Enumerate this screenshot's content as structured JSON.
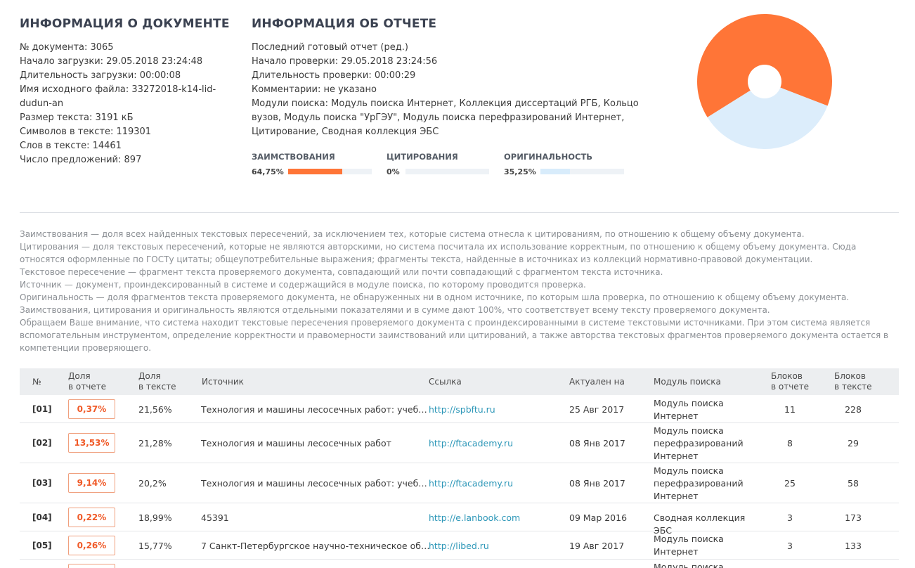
{
  "doc_info": {
    "title": "ИНФОРМАЦИЯ О ДОКУМЕНТЕ",
    "lines": [
      "№ документа: 3065",
      "Начало загрузки: 29.05.2018 23:24:48",
      "Длительность загрузки: 00:00:08",
      "Имя исходного файла: 33272018-k14-lid-",
      "dudun-an",
      "Размер текста: 3191 кБ",
      "Символов в тексте: 119301",
      "Слов в тексте: 14461",
      "Число предложений: 897"
    ]
  },
  "report_info": {
    "title": "ИНФОРМАЦИЯ ОБ ОТЧЕТЕ",
    "lines": [
      "Последний готовый отчет (ред.)",
      "Начало проверки: 29.05.2018 23:24:56",
      "Длительность проверки: 00:00:29",
      "Комментарии: не указано",
      "Модули поиска: Модуль поиска Интернет, Коллекция диссертаций РГБ, Кольцо",
      "вузов, Модуль поиска \"УрГЭУ\", Модуль поиска перефразирований Интернет,",
      "Цитирование, Сводная коллекция ЭБС"
    ]
  },
  "metrics": {
    "borrowing": {
      "label": "ЗАИМСТВОВАНИЯ",
      "value": "64,75%",
      "fraction": 0.6475,
      "color": "#ff7537"
    },
    "citation": {
      "label": "ЦИТИРОВАНИЯ",
      "value": "0%",
      "fraction": 0.0,
      "color": "#9fd45b"
    },
    "originality": {
      "label": "ОРИГИНАЛЬНОСТЬ",
      "value": "35,25%",
      "fraction": 0.3525,
      "color": "#d8ecfb"
    }
  },
  "pie_chart": {
    "slices": [
      {
        "label": "Заимствования",
        "value": 64.75,
        "color": "#ff7537"
      },
      {
        "label": "Оригинальность",
        "value": 35.25,
        "color": "#dcedfb"
      }
    ]
  },
  "legend_lines": [
    "Заимствования — доля всех найденных текстовых пересечений, за исключением тех, которые система отнесла к цитированиям, по отношению к общему объему документа.",
    "Цитирования — доля текстовых пересечений, которые не являются авторскими, но система посчитала их использование корректным, по отношению к общему объему документа. Сюда",
    "относятся оформленные по ГОСТу цитаты; общеупотребительные выражения; фрагменты текста, найденные в источниках из коллекций нормативно-правовой документации.",
    "Текстовое пересечение — фрагмент текста проверяемого документа, совпадающий или почти совпадающий с фрагментом текста источника.",
    "Источник — документ, проиндексированный в системе и содержащийся в модуле поиска, по которому проводится проверка.",
    "Оригинальность — доля фрагментов текста проверяемого документа, не обнаруженных ни в одном источнике, по которым шла проверка, по отношению к общему объему документа.",
    "Заимствования, цитирования и оригинальность являются отдельными показателями и в сумме дают 100%, что соответствует всему тексту проверяемого документа.",
    "Обращаем Ваше внимание, что система находит текстовые пересечения проверяемого документа с проиндексированными в системе текстовыми источниками. При этом система является",
    "вспомогательным инструментом, определение корректности и правомерности заимствований или цитирований, а также авторства текстовых фрагментов проверяемого документа остается в",
    "компетенции проверяющего."
  ],
  "table": {
    "headers": {
      "num": "№",
      "share_report_1": "Доля",
      "share_report_2": "в отчете",
      "share_text_1": "Доля",
      "share_text_2": "в тексте",
      "source": "Источник",
      "link": "Ссылка",
      "updated": "Актуален на",
      "module": "Модуль поиска",
      "blocks_report_1": "Блоков",
      "blocks_report_2": "в отчете",
      "blocks_text_1": "Блоков",
      "blocks_text_2": "в тексте"
    },
    "rows": [
      {
        "num": "[01]",
        "share_report": "0,37%",
        "share_text": "21,56%",
        "source": "Технология и машины лесосечных работ: учеб…",
        "link": "http://spbftu.ru",
        "updated": "25 Авг 2017",
        "module": "Модуль поиска Интернет",
        "blocks_report": "11",
        "blocks_text": "228"
      },
      {
        "num": "[02]",
        "share_report": "13,53%",
        "share_text": "21,28%",
        "source": "Технология и машины лесосечных работ",
        "link": "http://ftacademy.ru",
        "updated": "08 Янв 2017",
        "module": "Модуль поиска перефразирований Интернет",
        "blocks_report": "8",
        "blocks_text": "29"
      },
      {
        "num": "[03]",
        "share_report": "9,14%",
        "share_text": "20,2%",
        "source": "Технология и машины лесосечных работ: учеб…",
        "link": "http://ftacademy.ru",
        "updated": "08 Янв 2017",
        "module": "Модуль поиска перефразирований Интернет",
        "blocks_report": "25",
        "blocks_text": "58"
      },
      {
        "num": "[04]",
        "share_report": "0,22%",
        "share_text": "18,99%",
        "source": "45391",
        "link": "http://e.lanbook.com",
        "updated": "09 Мар 2016",
        "module": "Сводная коллекция ЭБС",
        "blocks_report": "3",
        "blocks_text": "173"
      },
      {
        "num": "[05]",
        "share_report": "0,26%",
        "share_text": "15,77%",
        "source": "7 Санкт-Петербургское научно-техническое об…",
        "link": "http://libed.ru",
        "updated": "19 Авг 2017",
        "module": "Модуль поиска Интернет",
        "blocks_report": "3",
        "blocks_text": "133"
      },
      {
        "num": "",
        "share_report": "",
        "share_text": "",
        "source": "",
        "link": "",
        "updated": "",
        "module": "Модуль поиска",
        "blocks_report": "",
        "blocks_text": ""
      }
    ]
  }
}
